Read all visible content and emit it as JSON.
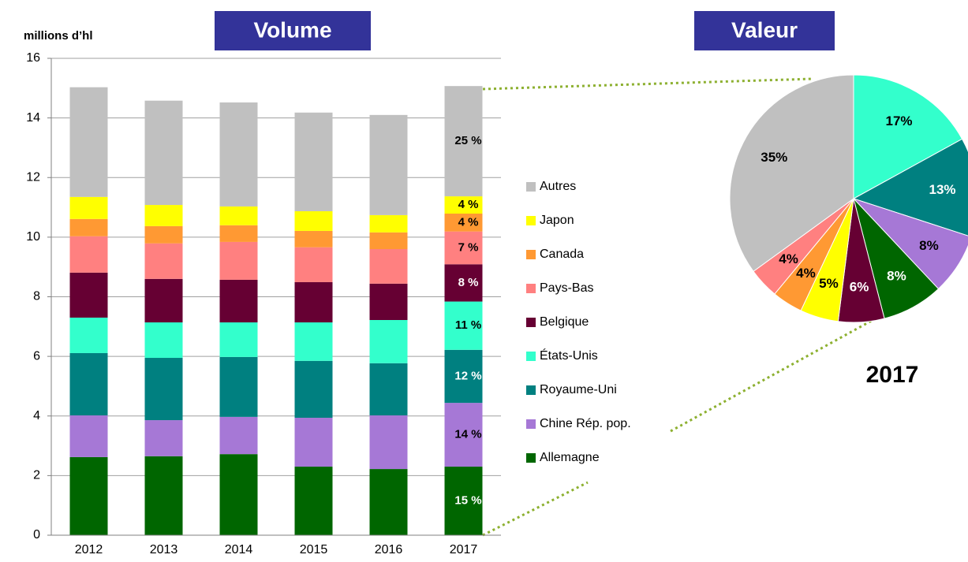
{
  "chart_data": [
    {
      "type": "bar",
      "stacked": true,
      "title": "Volume",
      "y_label": "millions d’hl",
      "categories": [
        "2012",
        "2013",
        "2014",
        "2015",
        "2016",
        "2017"
      ],
      "series": [
        {
          "name": "Allemagne",
          "color": "#006600",
          "values": [
            2.62,
            2.65,
            2.72,
            2.3,
            2.22,
            2.3
          ]
        },
        {
          "name": "Chine Rép. pop.",
          "color": "#a678d6",
          "values": [
            1.4,
            1.21,
            1.25,
            1.64,
            1.8,
            2.14
          ]
        },
        {
          "name": "Royaume-Uni",
          "color": "#008080",
          "values": [
            2.09,
            2.09,
            2.01,
            1.91,
            1.75,
            1.78
          ]
        },
        {
          "name": "États-Unis",
          "color": "#33ffcc",
          "values": [
            1.19,
            1.19,
            1.16,
            1.29,
            1.45,
            1.62
          ]
        },
        {
          "name": "Belgique",
          "color": "#660033",
          "values": [
            1.51,
            1.46,
            1.43,
            1.35,
            1.22,
            1.25
          ]
        },
        {
          "name": "Pays-Bas",
          "color": "#ff8080",
          "values": [
            1.22,
            1.19,
            1.27,
            1.17,
            1.16,
            1.1
          ]
        },
        {
          "name": "Canada",
          "color": "#ff9933",
          "values": [
            0.58,
            0.58,
            0.56,
            0.55,
            0.56,
            0.6
          ]
        },
        {
          "name": "Japon",
          "color": "#ffff00",
          "values": [
            0.74,
            0.71,
            0.63,
            0.66,
            0.58,
            0.58
          ]
        },
        {
          "name": "Autres",
          "color": "#c0c0c0",
          "values": [
            3.68,
            3.5,
            3.49,
            3.31,
            3.36,
            3.7
          ]
        }
      ],
      "annotations": [
        "15 %",
        "14 %",
        "12 %",
        "11 %",
        "8 %",
        "7 %",
        "4 %",
        "4 %",
        "25 %"
      ],
      "ylim": [
        0,
        16
      ],
      "yticks": [
        0,
        2,
        4,
        6,
        8,
        10,
        12,
        14,
        16
      ],
      "grid": true
    },
    {
      "type": "pie",
      "title": "Valeur",
      "label": "2017",
      "values": [
        17,
        13,
        8,
        8,
        6,
        5,
        4,
        4,
        35
      ],
      "value_labels": [
        "17%",
        "13%",
        "8%",
        "8%",
        "6%",
        "5%",
        "4%",
        "4%",
        "35%"
      ],
      "colors": [
        "#33ffcc",
        "#008080",
        "#a678d6",
        "#006600",
        "#660033",
        "#ffff00",
        "#ff9933",
        "#ff8080",
        "#c0c0c0"
      ]
    }
  ]
}
